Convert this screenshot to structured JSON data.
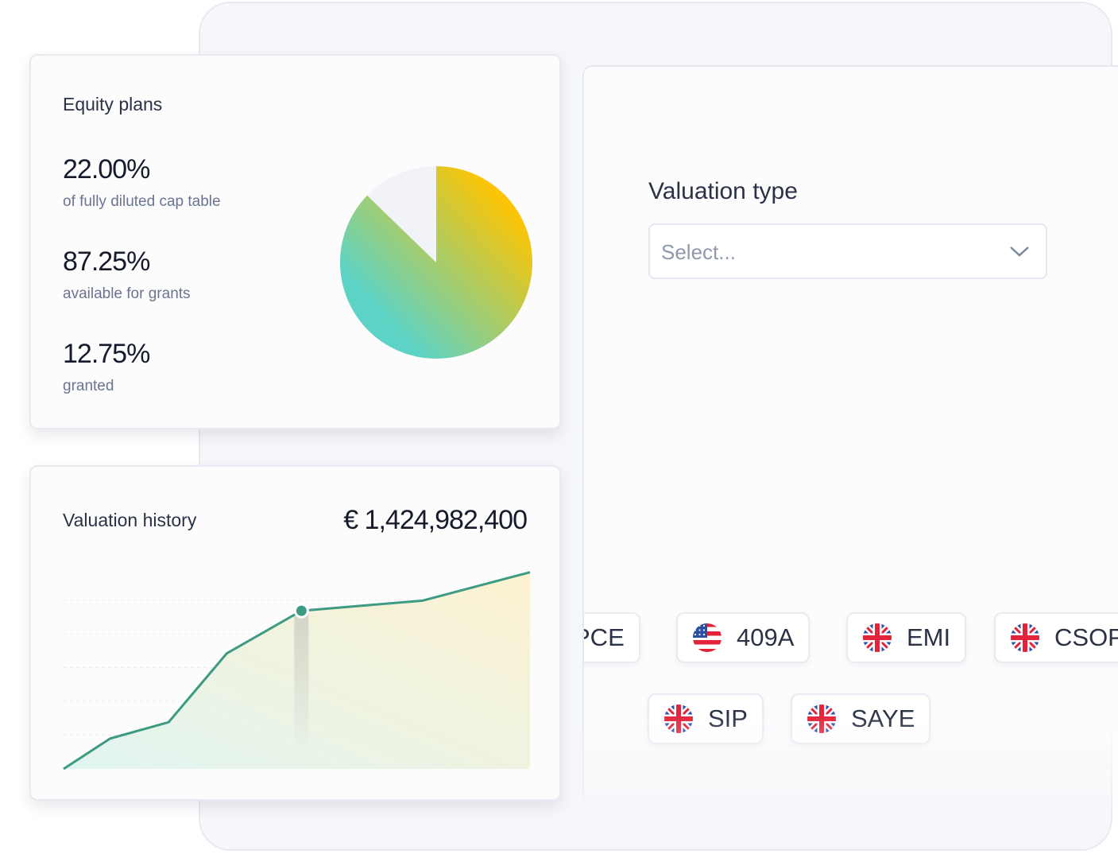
{
  "equity_plans": {
    "title": "Equity plans",
    "stat": {
      "value": "22.00%",
      "label": "of fully diluted cap table"
    }
  },
  "chart_data": [
    {
      "type": "pie",
      "categories": [
        "available for grants",
        "granted"
      ],
      "values": [
        87.25,
        12.75
      ],
      "value_labels": [
        "87.25%",
        "12.75%"
      ],
      "colors": [
        [
          "#ffc400",
          "#5dd3c5"
        ],
        "#f1f3f9"
      ]
    },
    {
      "type": "line",
      "title": "Valuation history",
      "total": "€ 1,424,982,400",
      "x": [
        0,
        10,
        22.5,
        35,
        51,
        77,
        100
      ],
      "values": [
        0,
        15,
        23,
        57,
        78,
        83,
        97
      ],
      "xlim": [
        0,
        100
      ],
      "ylim": [
        0,
        100
      ],
      "highlight_index": 4,
      "color": "#3d9a83",
      "area_colors": [
        "#dcf3ef",
        "#fdf0c8"
      ]
    }
  ],
  "valuation_form": {
    "label": "Valuation type",
    "placeholder": "Select...",
    "tags": [
      {
        "label": "PCE"
      },
      {
        "label": "409A",
        "flag": "us"
      },
      {
        "label": "EMI",
        "flag": "uk"
      },
      {
        "label": "CSOP",
        "flag": "uk"
      },
      {
        "label": "SIP",
        "flag": "uk"
      },
      {
        "label": "SAYE",
        "flag": "uk"
      }
    ]
  }
}
